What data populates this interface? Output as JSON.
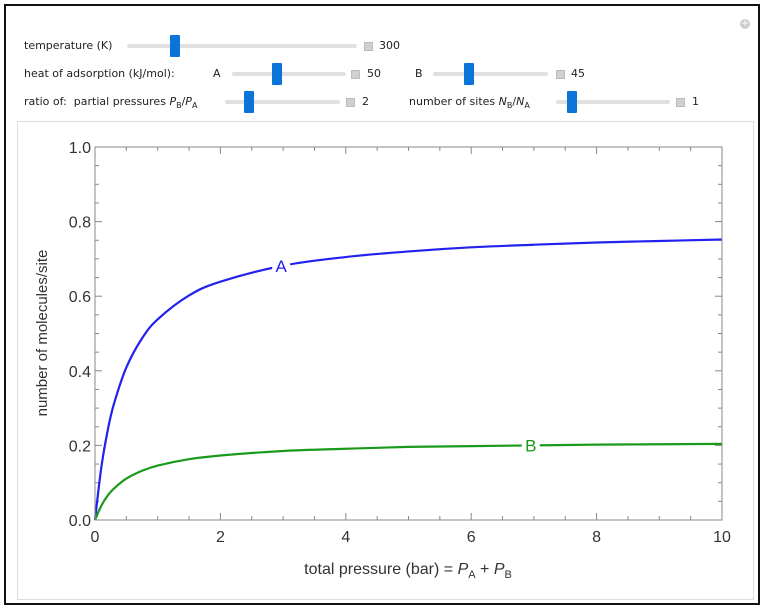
{
  "controls": {
    "temperature": {
      "label": "temperature (K)",
      "value": "300",
      "fraction": 0.2
    },
    "heat_label": "heat of adsorption (kJ/mol):",
    "heat_A": {
      "label": "A",
      "value": "50",
      "fraction": 0.4
    },
    "heat_B": {
      "label": "B",
      "value": "45",
      "fraction": 0.3
    },
    "ratio_label": "ratio of:",
    "pressure_ratio": {
      "label": "partial pressures",
      "sym1": "P",
      "sub1": "B",
      "sym2": "P",
      "sub2": "A",
      "value": "2",
      "fraction": 0.2
    },
    "site_ratio": {
      "label": "number of sites",
      "sym1": "N",
      "sub1": "B",
      "sym2": "N",
      "sub2": "A",
      "value": "1",
      "fraction": 0.12
    }
  },
  "chart_data": {
    "type": "line",
    "xlabel": "total pressure (bar) = ",
    "xlabel_math": {
      "p1": "P",
      "s1": "A",
      "op": " + ",
      "p2": "P",
      "s2": "B"
    },
    "ylabel": "number of molecules/site",
    "xlim": [
      0,
      10
    ],
    "ylim": [
      0,
      1
    ],
    "xticks": [
      "0",
      "2",
      "4",
      "6",
      "8",
      "10"
    ],
    "yticks": [
      "0.0",
      "0.2",
      "0.4",
      "0.6",
      "0.8",
      "1.0"
    ],
    "x": [
      0,
      0.1,
      0.2,
      0.3,
      0.5,
      0.75,
      1,
      1.5,
      2,
      3,
      4,
      5,
      6,
      7,
      8,
      9,
      10
    ],
    "series": [
      {
        "name": "A",
        "color": "#2222ee",
        "label_x": 2.97,
        "values": [
          0,
          0.14,
          0.238,
          0.31,
          0.409,
          0.487,
          0.538,
          0.602,
          0.639,
          0.682,
          0.705,
          0.72,
          0.731,
          0.738,
          0.744,
          0.748,
          0.752
        ]
      },
      {
        "name": "B",
        "color": "#1a9a1a",
        "label_x": 6.95,
        "values": [
          0,
          0.038,
          0.065,
          0.084,
          0.111,
          0.132,
          0.146,
          0.163,
          0.173,
          0.185,
          0.191,
          0.196,
          0.198,
          0.2,
          0.202,
          0.203,
          0.204
        ]
      }
    ],
    "grid": false
  }
}
